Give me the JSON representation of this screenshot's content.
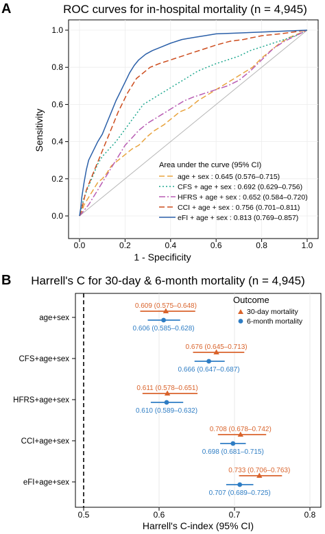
{
  "chart_data": [
    {
      "panel_label": "A",
      "type": "line",
      "title": "ROC curves for in-hospital mortality (n = 4,945)",
      "xlabel": "1 - Specificity",
      "ylabel": "Sensitivity",
      "xlim": [
        0,
        1
      ],
      "ylim": [
        0,
        1
      ],
      "xticks": [
        "0.0",
        "0.2",
        "0.4",
        "0.6",
        "0.8",
        "1.0"
      ],
      "yticks": [
        "0.0",
        "0.2",
        "0.4",
        "0.6",
        "0.8",
        "1.0"
      ],
      "grid": true,
      "legend_title": "Area under the curve (95% CI)",
      "legend_position": "bottom-right",
      "series": [
        {
          "name": "age + sex : 0.645 (0.576–0.715)",
          "color": "#E8A33D",
          "dash": "long-dash",
          "points": [
            [
              0,
              0
            ],
            [
              0.01,
              0.02
            ],
            [
              0.02,
              0.06
            ],
            [
              0.04,
              0.1
            ],
            [
              0.06,
              0.14
            ],
            [
              0.08,
              0.18
            ],
            [
              0.1,
              0.2
            ],
            [
              0.12,
              0.23
            ],
            [
              0.14,
              0.27
            ],
            [
              0.17,
              0.3
            ],
            [
              0.2,
              0.33
            ],
            [
              0.23,
              0.36
            ],
            [
              0.26,
              0.38
            ],
            [
              0.3,
              0.43
            ],
            [
              0.33,
              0.46
            ],
            [
              0.37,
              0.49
            ],
            [
              0.4,
              0.52
            ],
            [
              0.44,
              0.56
            ],
            [
              0.48,
              0.58
            ],
            [
              0.52,
              0.62
            ],
            [
              0.56,
              0.65
            ],
            [
              0.6,
              0.68
            ],
            [
              0.64,
              0.71
            ],
            [
              0.68,
              0.74
            ],
            [
              0.72,
              0.77
            ],
            [
              0.76,
              0.8
            ],
            [
              0.8,
              0.85
            ],
            [
              0.84,
              0.89
            ],
            [
              0.88,
              0.93
            ],
            [
              0.92,
              0.96
            ],
            [
              0.96,
              0.98
            ],
            [
              1,
              1
            ]
          ]
        },
        {
          "name": "CFS + age + sex : 0.692 (0.629–0.756)",
          "color": "#1FA88F",
          "dash": "dotted",
          "points": [
            [
              0,
              0
            ],
            [
              0.01,
              0.05
            ],
            [
              0.02,
              0.1
            ],
            [
              0.04,
              0.16
            ],
            [
              0.06,
              0.22
            ],
            [
              0.08,
              0.28
            ],
            [
              0.1,
              0.32
            ],
            [
              0.13,
              0.36
            ],
            [
              0.16,
              0.4
            ],
            [
              0.19,
              0.45
            ],
            [
              0.22,
              0.5
            ],
            [
              0.25,
              0.55
            ],
            [
              0.28,
              0.6
            ],
            [
              0.32,
              0.63
            ],
            [
              0.36,
              0.66
            ],
            [
              0.4,
              0.69
            ],
            [
              0.44,
              0.72
            ],
            [
              0.48,
              0.75
            ],
            [
              0.52,
              0.78
            ],
            [
              0.56,
              0.8
            ],
            [
              0.6,
              0.82
            ],
            [
              0.65,
              0.84
            ],
            [
              0.7,
              0.86
            ],
            [
              0.75,
              0.89
            ],
            [
              0.8,
              0.91
            ],
            [
              0.85,
              0.93
            ],
            [
              0.9,
              0.95
            ],
            [
              0.95,
              0.97
            ],
            [
              1,
              1
            ]
          ]
        },
        {
          "name": "HFRS + age + sex : 0.652 (0.584–0.720)",
          "color": "#B85CB3",
          "dash": "dot-dash",
          "points": [
            [
              0,
              0
            ],
            [
              0.02,
              0.03
            ],
            [
              0.04,
              0.06
            ],
            [
              0.06,
              0.1
            ],
            [
              0.08,
              0.14
            ],
            [
              0.1,
              0.18
            ],
            [
              0.12,
              0.22
            ],
            [
              0.14,
              0.26
            ],
            [
              0.16,
              0.3
            ],
            [
              0.18,
              0.34
            ],
            [
              0.2,
              0.38
            ],
            [
              0.23,
              0.42
            ],
            [
              0.26,
              0.46
            ],
            [
              0.3,
              0.5
            ],
            [
              0.34,
              0.53
            ],
            [
              0.38,
              0.56
            ],
            [
              0.42,
              0.59
            ],
            [
              0.46,
              0.62
            ],
            [
              0.5,
              0.64
            ],
            [
              0.55,
              0.66
            ],
            [
              0.6,
              0.68
            ],
            [
              0.65,
              0.7
            ],
            [
              0.7,
              0.73
            ],
            [
              0.75,
              0.78
            ],
            [
              0.8,
              0.84
            ],
            [
              0.85,
              0.9
            ],
            [
              0.9,
              0.94
            ],
            [
              0.95,
              0.97
            ],
            [
              1,
              1
            ]
          ]
        },
        {
          "name": "CCI + age + sex : 0.756 (0.701–0.811)",
          "color": "#CC4B1C",
          "dash": "long-dash",
          "points": [
            [
              0,
              0
            ],
            [
              0.01,
              0.04
            ],
            [
              0.02,
              0.09
            ],
            [
              0.03,
              0.14
            ],
            [
              0.05,
              0.2
            ],
            [
              0.07,
              0.26
            ],
            [
              0.09,
              0.32
            ],
            [
              0.11,
              0.38
            ],
            [
              0.13,
              0.44
            ],
            [
              0.15,
              0.5
            ],
            [
              0.17,
              0.56
            ],
            [
              0.19,
              0.61
            ],
            [
              0.21,
              0.66
            ],
            [
              0.23,
              0.7
            ],
            [
              0.25,
              0.74
            ],
            [
              0.28,
              0.77
            ],
            [
              0.31,
              0.8
            ],
            [
              0.35,
              0.82
            ],
            [
              0.4,
              0.84
            ],
            [
              0.45,
              0.86
            ],
            [
              0.5,
              0.88
            ],
            [
              0.55,
              0.9
            ],
            [
              0.6,
              0.92
            ],
            [
              0.66,
              0.94
            ],
            [
              0.72,
              0.95
            ],
            [
              0.8,
              0.97
            ],
            [
              0.88,
              0.98
            ],
            [
              0.94,
              0.99
            ],
            [
              1,
              1
            ]
          ]
        },
        {
          "name": "eFI + age + sex : 0.813 (0.769–0.857)",
          "color": "#2A5FA8",
          "dash": "solid",
          "points": [
            [
              0,
              0
            ],
            [
              0.005,
              0.04
            ],
            [
              0.01,
              0.1
            ],
            [
              0.02,
              0.18
            ],
            [
              0.03,
              0.25
            ],
            [
              0.04,
              0.3
            ],
            [
              0.06,
              0.35
            ],
            [
              0.08,
              0.4
            ],
            [
              0.1,
              0.44
            ],
            [
              0.12,
              0.5
            ],
            [
              0.14,
              0.56
            ],
            [
              0.16,
              0.62
            ],
            [
              0.18,
              0.67
            ],
            [
              0.2,
              0.72
            ],
            [
              0.22,
              0.77
            ],
            [
              0.24,
              0.81
            ],
            [
              0.26,
              0.84
            ],
            [
              0.29,
              0.87
            ],
            [
              0.32,
              0.89
            ],
            [
              0.36,
              0.91
            ],
            [
              0.4,
              0.93
            ],
            [
              0.45,
              0.95
            ],
            [
              0.5,
              0.96
            ],
            [
              0.55,
              0.97
            ],
            [
              0.6,
              0.98
            ],
            [
              0.7,
              0.985
            ],
            [
              0.8,
              0.99
            ],
            [
              0.9,
              0.995
            ],
            [
              1,
              1
            ]
          ]
        }
      ]
    },
    {
      "panel_label": "B",
      "type": "scatter",
      "title": "Harrell's C for 30-day & 6-month mortality (n = 4,945)",
      "xlabel": "Harrell's C-index (95% CI)",
      "xlim": [
        0.5,
        0.8
      ],
      "xticks": [
        "0.5",
        "0.6",
        "0.7",
        "0.8"
      ],
      "reference_line": 0.5,
      "grid": true,
      "legend_title": "Outcome",
      "legend_position": "top-right",
      "categories": [
        "age+sex",
        "CFS+age+sex",
        "HFRS+age+sex",
        "CCI+age+sex",
        "eFI+age+sex"
      ],
      "series": [
        {
          "name": "30-day mortality",
          "color": "#D9632B",
          "marker": "triangle",
          "points": [
            {
              "category": "age+sex",
              "value": 0.609,
              "lower": 0.575,
              "upper": 0.648,
              "label": "0.609 (0.575–0.648)"
            },
            {
              "category": "CFS+age+sex",
              "value": 0.676,
              "lower": 0.645,
              "upper": 0.713,
              "label": "0.676 (0.645–0.713)"
            },
            {
              "category": "HFRS+age+sex",
              "value": 0.611,
              "lower": 0.578,
              "upper": 0.651,
              "label": "0.611 (0.578–0.651)"
            },
            {
              "category": "CCI+age+sex",
              "value": 0.708,
              "lower": 0.678,
              "upper": 0.742,
              "label": "0.708 (0.678–0.742)"
            },
            {
              "category": "eFI+age+sex",
              "value": 0.733,
              "lower": 0.706,
              "upper": 0.763,
              "label": "0.733 (0.706–0.763)"
            }
          ]
        },
        {
          "name": "6-month mortality",
          "color": "#2E7DC4",
          "marker": "circle",
          "points": [
            {
              "category": "age+sex",
              "value": 0.606,
              "lower": 0.585,
              "upper": 0.628,
              "label": "0.606 (0.585–0.628)"
            },
            {
              "category": "CFS+age+sex",
              "value": 0.666,
              "lower": 0.647,
              "upper": 0.687,
              "label": "0.666 (0.647–0.687)"
            },
            {
              "category": "HFRS+age+sex",
              "value": 0.61,
              "lower": 0.589,
              "upper": 0.632,
              "label": "0.610 (0.589–0.632)"
            },
            {
              "category": "CCI+age+sex",
              "value": 0.698,
              "lower": 0.681,
              "upper": 0.715,
              "label": "0.698 (0.681–0.715)"
            },
            {
              "category": "eFI+age+sex",
              "value": 0.707,
              "lower": 0.689,
              "upper": 0.725,
              "label": "0.707 (0.689–0.725)"
            }
          ]
        }
      ]
    }
  ]
}
